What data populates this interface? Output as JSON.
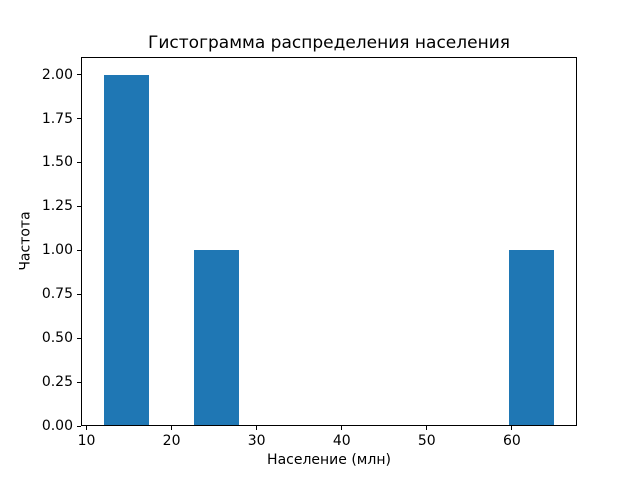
{
  "figure": {
    "background_color": "#ffffff",
    "text_color": "#000000"
  },
  "chart_data": {
    "type": "bar",
    "chart_kind": "histogram",
    "title": "Гистограмма распределения населения",
    "xlabel": "Население (млн)",
    "ylabel": "Частота",
    "bar_color": "#1f77b4",
    "grid": false,
    "legend": false,
    "xlim": [
      9.35,
      67.65
    ],
    "ylim": [
      0,
      2.1
    ],
    "x_ticks": [
      {
        "value": 10,
        "label": "10"
      },
      {
        "value": 20,
        "label": "20"
      },
      {
        "value": 30,
        "label": "30"
      },
      {
        "value": 40,
        "label": "40"
      },
      {
        "value": 50,
        "label": "50"
      },
      {
        "value": 60,
        "label": "60"
      }
    ],
    "y_ticks": [
      {
        "value": 0.0,
        "label": "0.00"
      },
      {
        "value": 0.25,
        "label": "0.25"
      },
      {
        "value": 0.5,
        "label": "0.50"
      },
      {
        "value": 0.75,
        "label": "0.75"
      },
      {
        "value": 1.0,
        "label": "1.00"
      },
      {
        "value": 1.25,
        "label": "1.25"
      },
      {
        "value": 1.5,
        "label": "1.50"
      },
      {
        "value": 1.75,
        "label": "1.75"
      },
      {
        "value": 2.0,
        "label": "2.00"
      }
    ],
    "bars": [
      {
        "x_start": 12.0,
        "x_end": 17.3,
        "frequency": 2
      },
      {
        "x_start": 22.6,
        "x_end": 27.9,
        "frequency": 1
      },
      {
        "x_start": 59.7,
        "x_end": 65.0,
        "frequency": 1
      }
    ],
    "bin_edges": [
      12.0,
      17.3,
      22.6,
      27.9,
      33.2,
      38.5,
      43.8,
      49.1,
      54.4,
      59.7,
      65.0
    ],
    "bin_counts": [
      2,
      0,
      1,
      0,
      0,
      0,
      0,
      0,
      0,
      1
    ]
  }
}
